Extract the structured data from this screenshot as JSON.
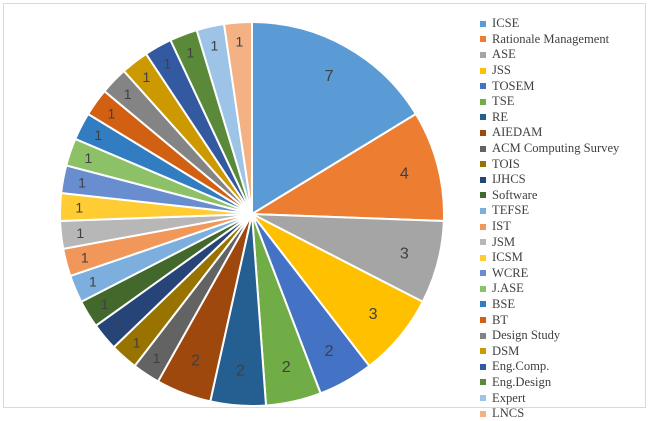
{
  "chart_data": {
    "type": "pie",
    "title": "",
    "legend_position": "right",
    "categories": [
      "ICSE",
      "Rationale Management",
      "ASE",
      "JSS",
      "TOSEM",
      "TSE",
      "RE",
      "AIEDAM",
      "ACM Computing Survey",
      "TOIS",
      "IJHCS",
      "Software",
      "TEFSE",
      "IST",
      "JSM",
      "ICSM",
      "WCRE",
      "J.ASE",
      "BSE",
      "BT",
      "Design Study",
      "DSM",
      "Eng.Comp.",
      "Eng.Design",
      "Expert",
      "LNCS"
    ],
    "values": [
      7,
      4,
      3,
      3,
      2,
      2,
      2,
      2,
      1,
      1,
      1,
      1,
      1,
      1,
      1,
      1,
      1,
      1,
      1,
      1,
      1,
      1,
      1,
      1,
      1,
      1
    ],
    "colors": [
      "#5B9BD5",
      "#ED7D31",
      "#A5A5A5",
      "#FFC000",
      "#4472C4",
      "#70AD47",
      "#255E91",
      "#9E480E",
      "#636363",
      "#997300",
      "#264478",
      "#43682B",
      "#7CAFDD",
      "#F1975A",
      "#B7B7B7",
      "#FFCD33",
      "#698ED0",
      "#8CC168",
      "#327DC2",
      "#D26012",
      "#848484",
      "#CC9A00",
      "#335AA1",
      "#5A8A39",
      "#9DC3E6",
      "#F4B183"
    ]
  }
}
